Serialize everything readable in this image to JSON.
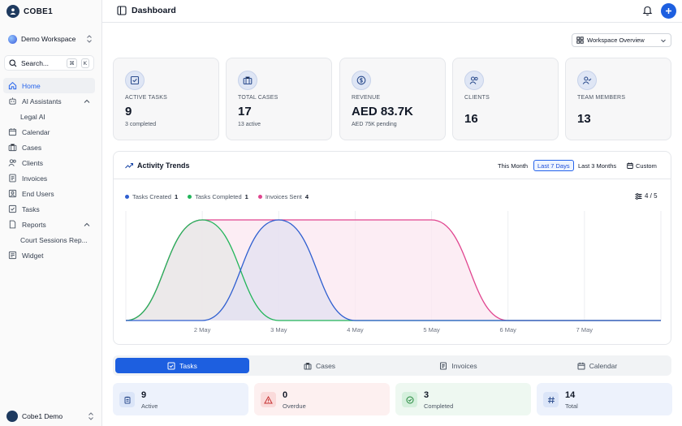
{
  "brand": {
    "name": "COBE1"
  },
  "workspace": {
    "name": "Demo Workspace"
  },
  "search": {
    "label": "Search...",
    "kbd1": "⌘",
    "kbd2": "K"
  },
  "sidebar": {
    "items": [
      {
        "label": "Home",
        "icon": "home-icon"
      },
      {
        "label": "AI Assistants",
        "icon": "robot-icon"
      },
      {
        "label": "Legal AI"
      },
      {
        "label": "Calendar",
        "icon": "calendar-icon"
      },
      {
        "label": "Cases",
        "icon": "briefcase-icon"
      },
      {
        "label": "Clients",
        "icon": "users-icon"
      },
      {
        "label": "Invoices",
        "icon": "invoice-icon"
      },
      {
        "label": "End Users",
        "icon": "id-card-icon"
      },
      {
        "label": "Tasks",
        "icon": "checkbox-icon"
      },
      {
        "label": "Reports",
        "icon": "file-icon"
      },
      {
        "label": "Court Sessions Rep..."
      },
      {
        "label": "Widget",
        "icon": "widget-icon"
      }
    ]
  },
  "user": {
    "name": "Cobe1 Demo"
  },
  "header": {
    "title": "Dashboard"
  },
  "overview_select": {
    "label": "Workspace Overview"
  },
  "stats": [
    {
      "label": "ACTIVE TASKS",
      "value": "9",
      "sub": "3 completed"
    },
    {
      "label": "TOTAL CASES",
      "value": "17",
      "sub": "13 active"
    },
    {
      "label": "REVENUE",
      "value": "AED 83.7K",
      "sub": "AED 75K pending"
    },
    {
      "label": "CLIENTS",
      "value": "16"
    },
    {
      "label": "TEAM MEMBERS",
      "value": "13"
    }
  ],
  "activity": {
    "title": "Activity Trends",
    "ranges": [
      "This Month",
      "Last 7 Days",
      "Last 3 Months",
      "Custom"
    ],
    "active_range": "Last 7 Days",
    "legend": [
      {
        "name": "Tasks Created",
        "count": "1",
        "color": "#2f5fd0"
      },
      {
        "name": "Tasks Completed",
        "count": "1",
        "color": "#22b55a"
      },
      {
        "name": "Invoices Sent",
        "count": "4",
        "color": "#e0458f"
      }
    ],
    "series_count": "4 / 5"
  },
  "chart_data": {
    "type": "area",
    "categories": [
      "",
      "2 May",
      "3 May",
      "4 May",
      "5 May",
      "6 May",
      "7 May",
      ""
    ],
    "series": [
      {
        "name": "Tasks Created",
        "color": "#2f5fd0",
        "fill": "#e3e0f1",
        "values": [
          0,
          0,
          1,
          0,
          0,
          0,
          0,
          0
        ]
      },
      {
        "name": "Tasks Completed",
        "color": "#22b55a",
        "fill": "#e7e7e7",
        "values": [
          0,
          1,
          0,
          0,
          0,
          0,
          0,
          0
        ]
      },
      {
        "name": "Invoices Sent",
        "color": "#e0458f",
        "fill": "#fbe7f0",
        "values": [
          0,
          1,
          1,
          1,
          1,
          0,
          0,
          0
        ]
      }
    ],
    "grid": true
  },
  "tabs": [
    "Tasks",
    "Cases",
    "Invoices",
    "Calendar"
  ],
  "summary": [
    {
      "value": "9",
      "label": "Active",
      "bg": "#edf2fc",
      "icon_bg": "#dbe5f8",
      "icon": "clipboard-icon"
    },
    {
      "value": "0",
      "label": "Overdue",
      "bg": "#fdf0f0",
      "icon_bg": "#fadada",
      "icon": "warning-icon"
    },
    {
      "value": "3",
      "label": "Completed",
      "bg": "#eef8f1",
      "icon_bg": "#d5f0dd",
      "icon": "check-circle-icon"
    },
    {
      "value": "14",
      "label": "Total",
      "bg": "#edf2fc",
      "icon_bg": "#dbe5f8",
      "icon": "hash-icon"
    }
  ]
}
